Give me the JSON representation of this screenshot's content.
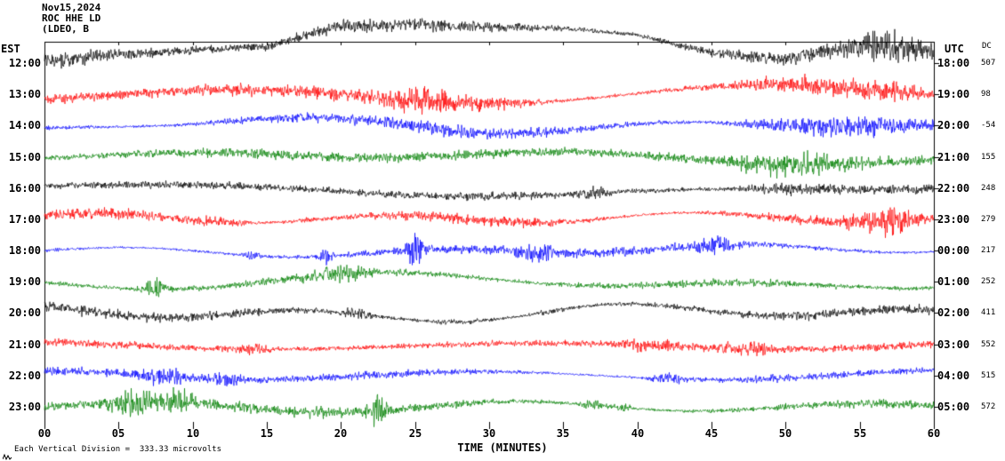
{
  "header": {
    "date": "Nov15,2024",
    "station": "ROC HHE LD",
    "affiliation": "(LDEO, B"
  },
  "axes": {
    "left_label": "EST",
    "right_label": "UTC",
    "dc_label": "DC",
    "x_label": "TIME (MINUTES)",
    "x_ticks": [
      "00",
      "05",
      "10",
      "15",
      "20",
      "25",
      "30",
      "35",
      "40",
      "45",
      "50",
      "55",
      "60"
    ]
  },
  "footer": {
    "scale_note": "Each Vertical Division =  333.33 microvolts"
  },
  "chart_data": {
    "type": "line",
    "title": "ROC HHE LD Nov15,2024",
    "xlabel": "TIME (MINUTES)",
    "x_range": [
      0,
      60
    ],
    "x_tick_interval": 5,
    "vertical_division_microvolts": 333.33,
    "rows": [
      {
        "est": "12:00",
        "utc": "18:00",
        "dc": 507,
        "color": "#000000",
        "noise": 13,
        "wander": 6,
        "seed": 101,
        "drift": [
          0,
          -6,
          -10,
          -16,
          -44,
          -48,
          -46,
          -42,
          -34,
          -14,
          -8,
          -20,
          -10
        ],
        "bursts": [
          {
            "m": 57,
            "w": 2,
            "a": 1.2
          }
        ]
      },
      {
        "est": "13:00",
        "utc": "19:00",
        "dc": 98,
        "color": "#ff0000",
        "noise": 9,
        "wander": 7,
        "seed": 202,
        "bursts": [
          {
            "m": 26,
            "w": 3,
            "a": 1.6
          },
          {
            "m": 31,
            "w": 2,
            "a": 1.2
          },
          {
            "m": 51,
            "w": 4,
            "a": 1.3
          },
          {
            "m": 57,
            "w": 2,
            "a": 1.5
          }
        ]
      },
      {
        "est": "14:00",
        "utc": "20:00",
        "dc": -54,
        "color": "#0000ff",
        "noise": 8,
        "wander": 6,
        "seed": 303,
        "bursts": [
          {
            "m": 48,
            "w": 2,
            "a": 1.5
          },
          {
            "m": 52,
            "w": 3,
            "a": 3.2
          },
          {
            "m": 56,
            "w": 2,
            "a": 1.5
          }
        ]
      },
      {
        "est": "15:00",
        "utc": "21:00",
        "dc": 155,
        "color": "#008000",
        "noise": 8,
        "wander": 6,
        "seed": 404,
        "bursts": [
          {
            "m": 50,
            "w": 4,
            "a": 2.2
          }
        ]
      },
      {
        "est": "16:00",
        "utc": "22:00",
        "dc": 248,
        "color": "#000000",
        "noise": 7,
        "wander": 5,
        "seed": 505,
        "bursts": [
          {
            "m": 37,
            "w": 1,
            "a": 1.5
          },
          {
            "m": 50,
            "w": 3,
            "a": 1.2
          }
        ]
      },
      {
        "est": "17:00",
        "utc": "23:00",
        "dc": 279,
        "color": "#ff0000",
        "noise": 7,
        "wander": 5,
        "seed": 606,
        "bursts": [
          {
            "m": 12,
            "w": 2,
            "a": 1.3
          },
          {
            "m": 17,
            "w": 1,
            "a": 1.5
          },
          {
            "m": 57,
            "w": 2,
            "a": 1.6
          }
        ]
      },
      {
        "est": "18:00",
        "utc": "00:00",
        "dc": 217,
        "color": "#0000ff",
        "noise": 6,
        "wander": 5,
        "seed": 707,
        "bursts": [
          {
            "m": 14,
            "w": 0.5,
            "a": 4
          },
          {
            "m": 19,
            "w": 0.4,
            "a": 3
          },
          {
            "m": 25,
            "w": 0.5,
            "a": 4
          },
          {
            "m": 33,
            "w": 1,
            "a": 1.5
          },
          {
            "m": 45,
            "w": 1.5,
            "a": 1.5
          }
        ]
      },
      {
        "est": "19:00",
        "utc": "01:00",
        "dc": 252,
        "color": "#008000",
        "noise": 6,
        "wander": 6,
        "seed": 808,
        "bursts": [
          {
            "m": 7.5,
            "w": 0.8,
            "a": 4
          },
          {
            "m": 20,
            "w": 2,
            "a": 1.3
          }
        ]
      },
      {
        "est": "20:00",
        "utc": "02:00",
        "dc": 411,
        "color": "#000000",
        "noise": 7,
        "wander": 6,
        "seed": 909,
        "bursts": [
          {
            "m": 21,
            "w": 1,
            "a": 1.8
          },
          {
            "m": 28,
            "w": 2,
            "a": 1.3
          },
          {
            "m": 34,
            "w": 1,
            "a": 1.4
          }
        ]
      },
      {
        "est": "21:00",
        "utc": "03:00",
        "dc": 552,
        "color": "#ff0000",
        "noise": 6,
        "wander": 5,
        "seed": 1010,
        "bursts": [
          {
            "m": 14,
            "w": 1,
            "a": 1.6
          },
          {
            "m": 41,
            "w": 2,
            "a": 1.5
          },
          {
            "m": 47,
            "w": 2,
            "a": 1.6
          }
        ]
      },
      {
        "est": "22:00",
        "utc": "04:00",
        "dc": 515,
        "color": "#0000ff",
        "noise": 6,
        "wander": 5,
        "seed": 1111,
        "bursts": [
          {
            "m": 8,
            "w": 1.5,
            "a": 2
          },
          {
            "m": 12,
            "w": 1,
            "a": 2
          },
          {
            "m": 42,
            "w": 1,
            "a": 2.5
          }
        ]
      },
      {
        "est": "23:00",
        "utc": "05:00",
        "dc": 572,
        "color": "#008000",
        "noise": 8,
        "wander": 6,
        "seed": 1212,
        "bursts": [
          {
            "m": 6,
            "w": 1.5,
            "a": 2.5
          },
          {
            "m": 9,
            "w": 1,
            "a": 2
          },
          {
            "m": 22.5,
            "w": 0.5,
            "a": 2.5
          },
          {
            "m": 37,
            "w": 0.8,
            "a": 3
          },
          {
            "m": 39,
            "w": 0.6,
            "a": 2.5
          }
        ]
      }
    ]
  }
}
